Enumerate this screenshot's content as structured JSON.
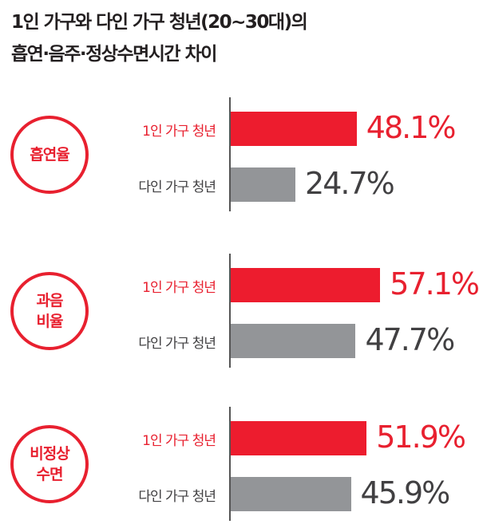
{
  "title": [
    "1인 가구와 다인 가구 청년(20~30대)의",
    "흡연·음주·정상수면시간 차이"
  ],
  "colors": {
    "single": "#ed1c2e",
    "multi": "#939598",
    "single_text": "#e8202f",
    "multi_text": "#414042"
  },
  "chart_data": {
    "type": "bar",
    "orientation": "horizontal",
    "title": "1인 가구와 다인 가구 청년(20~30대)의 흡연·음주·정상수면시간 차이",
    "unit": "%",
    "groups": [
      {
        "category": "흡연율",
        "bars": [
          {
            "label": "1인 가구 청년",
            "value": 48.1,
            "text": "48.1%"
          },
          {
            "label": "다인 가구 청년",
            "value": 24.7,
            "text": "24.7%"
          }
        ]
      },
      {
        "category": "과음\n비율",
        "bars": [
          {
            "label": "1인 가구 청년",
            "value": 57.1,
            "text": "57.1%"
          },
          {
            "label": "다인 가구 청년",
            "value": 47.7,
            "text": "47.7%"
          }
        ]
      },
      {
        "category": "비정상\n수면",
        "bars": [
          {
            "label": "1인 가구 청년",
            "value": 51.9,
            "text": "51.9%"
          },
          {
            "label": "다인 가구 청년",
            "value": 45.9,
            "text": "45.9%"
          }
        ]
      }
    ]
  }
}
